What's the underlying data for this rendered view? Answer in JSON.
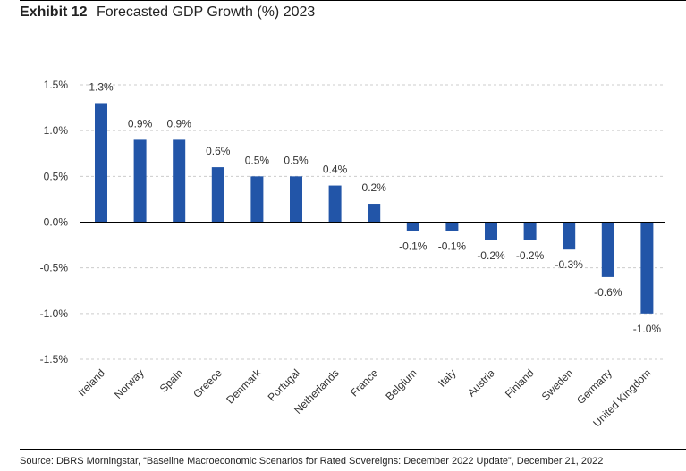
{
  "header": {
    "exhibit": "Exhibit 12",
    "title": "Forecasted GDP Growth (%) 2023"
  },
  "footer": {
    "source": "Source: DBRS Morningstar, “Baseline Macroeconomic Scenarios for Rated Sovereigns: December 2022 Update”, December 21, 2022"
  },
  "chart_data": {
    "type": "bar",
    "title": "Forecasted GDP Growth (%) 2023",
    "xlabel": "",
    "ylabel": "",
    "categories": [
      "Ireland",
      "Norway",
      "Spain",
      "Greece",
      "Denmark",
      "Portugal",
      "Netherlands",
      "France",
      "Belgium",
      "Italy",
      "Austria",
      "Finland",
      "Sweden",
      "Germany",
      "United Kingdom"
    ],
    "values": [
      1.3,
      0.9,
      0.9,
      0.6,
      0.5,
      0.5,
      0.4,
      0.2,
      -0.1,
      -0.1,
      -0.2,
      -0.2,
      -0.3,
      -0.6,
      -1.0
    ],
    "value_labels": [
      "1.3%",
      "0.9%",
      "0.9%",
      "0.6%",
      "0.5%",
      "0.5%",
      "0.4%",
      "0.2%",
      "-0.1%",
      "-0.1%",
      "-0.2%",
      "-0.2%",
      "-0.3%",
      "-0.6%",
      "-1.0%"
    ],
    "ylim": [
      -1.5,
      1.5
    ],
    "yticks": [
      1.5,
      1.0,
      0.5,
      0.0,
      -0.5,
      -1.0,
      -1.5
    ],
    "ytick_labels": [
      "1.5%",
      "1.0%",
      "0.5%",
      "0.0%",
      "-0.5%",
      "-1.0%",
      "-1.5%"
    ],
    "grid": true,
    "legend": "none",
    "bar_color": "#2255a8",
    "grid_color": "#cccccc",
    "zero_line_color": "#000000"
  }
}
